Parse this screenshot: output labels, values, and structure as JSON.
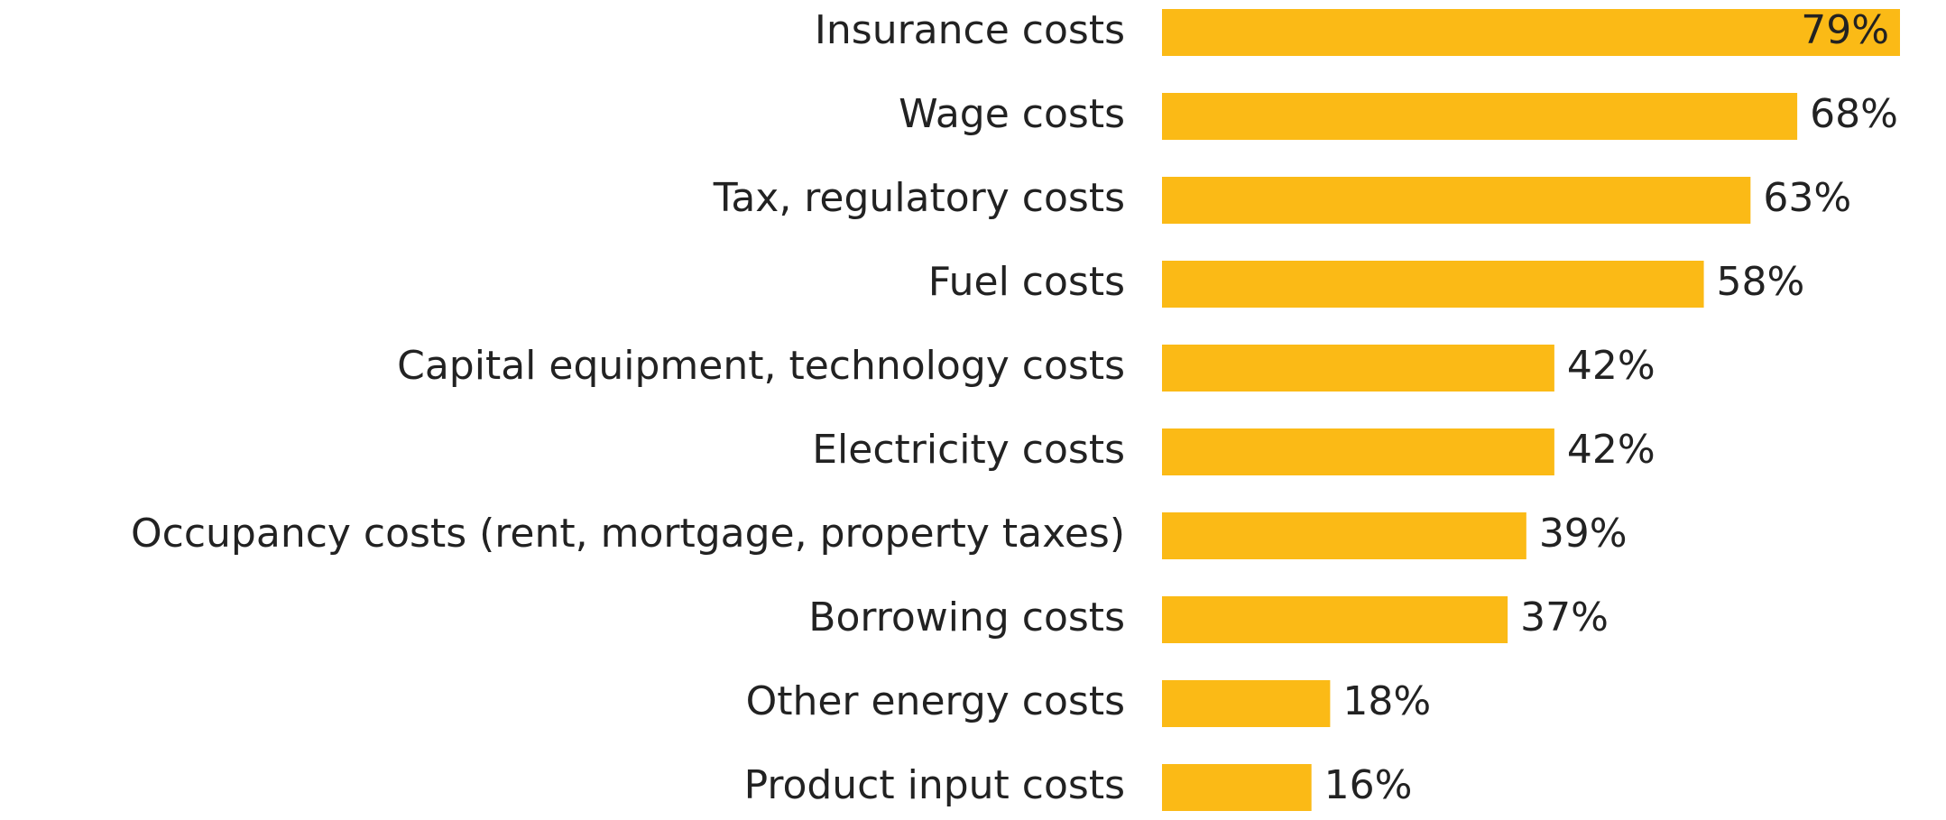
{
  "chart_data": {
    "type": "barh",
    "categories": [
      "Insurance costs",
      "Wage costs",
      "Tax, regulatory costs",
      "Fuel costs",
      "Capital equipment, technology costs",
      "Electricity costs",
      "Occupancy costs (rent, mortgage, property taxes)",
      "Borrowing costs",
      "Other energy costs",
      "Product input costs"
    ],
    "values": [
      79,
      68,
      63,
      58,
      42,
      42,
      39,
      37,
      18,
      16
    ],
    "value_labels": [
      "79%",
      "68%",
      "63%",
      "58%",
      "42%",
      "42%",
      "39%",
      "37%",
      "18%",
      "16%"
    ],
    "color": "#FBBA16"
  }
}
